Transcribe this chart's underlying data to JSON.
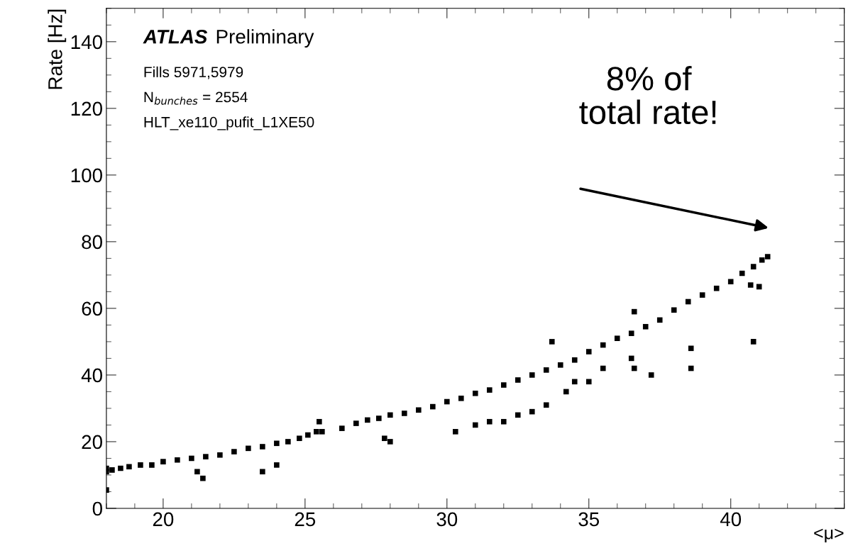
{
  "chart_data": {
    "type": "scatter",
    "xlabel": "<μ>",
    "ylabel": "Rate [Hz]",
    "xlim": [
      18,
      44
    ],
    "ylim": [
      0,
      150
    ],
    "xticks": [
      20,
      25,
      30,
      35,
      40
    ],
    "yticks": [
      0,
      20,
      40,
      60,
      80,
      100,
      120,
      140
    ],
    "marker": "square",
    "grid": false,
    "legend": false,
    "series": [
      {
        "color": "#000000",
        "x": [
          18.0,
          18.0,
          18.2,
          18.5,
          18.8,
          19.2,
          19.6,
          20.0,
          20.5,
          21.0,
          21.5,
          22.0,
          22.5,
          23.0,
          23.5,
          24.0,
          24.4,
          24.8,
          25.1,
          25.4,
          25.6,
          26.3,
          26.8,
          27.2,
          27.6,
          28.0,
          28.5,
          29.0,
          29.5,
          30.0,
          30.5,
          31.0,
          31.5,
          32.0,
          32.5,
          33.0,
          33.5,
          34.0,
          34.5,
          35.0,
          35.5,
          36.0,
          36.5,
          37.0,
          37.5,
          38.0,
          38.5,
          39.0,
          39.5,
          40.0,
          40.4,
          40.8,
          41.1,
          41.3,
          18.0,
          21.2,
          21.4,
          23.5,
          24.0,
          27.8,
          28.0,
          30.3,
          31.0,
          31.5,
          32.0,
          32.5,
          33.0,
          33.5,
          33.7,
          34.2,
          34.5,
          35.0,
          35.5,
          36.5,
          36.6,
          36.6,
          37.2,
          38.6,
          38.6,
          40.7,
          40.8,
          41.0,
          25.5
        ],
        "values": [
          11,
          12,
          11.5,
          12,
          12.5,
          13,
          13,
          14,
          14.5,
          15,
          15.5,
          16,
          17,
          18,
          18.5,
          19.5,
          20,
          21,
          22,
          23,
          23,
          24,
          25.5,
          26.5,
          27,
          28,
          28.5,
          29.5,
          30.5,
          32,
          33,
          34.5,
          35.5,
          37,
          38.5,
          40,
          41.5,
          43,
          44.5,
          47,
          49,
          51,
          52.5,
          54.5,
          56.5,
          59.5,
          62,
          64,
          66,
          68,
          70.5,
          72.5,
          74.5,
          75.5,
          5.5,
          11,
          9,
          11,
          13,
          21,
          20,
          23,
          25,
          26,
          26,
          28,
          29,
          31,
          50,
          35,
          38,
          38,
          42,
          45,
          42,
          59,
          40,
          48,
          42,
          67,
          50,
          66.5,
          26
        ]
      }
    ],
    "annotations": [
      "ATLAS Preliminary",
      "Fills 5971,5979",
      "N$_{bunches}$ = 2554",
      "HLT_xe110_pufit_L1XE50",
      "8% of\ntotal rate!"
    ]
  }
}
